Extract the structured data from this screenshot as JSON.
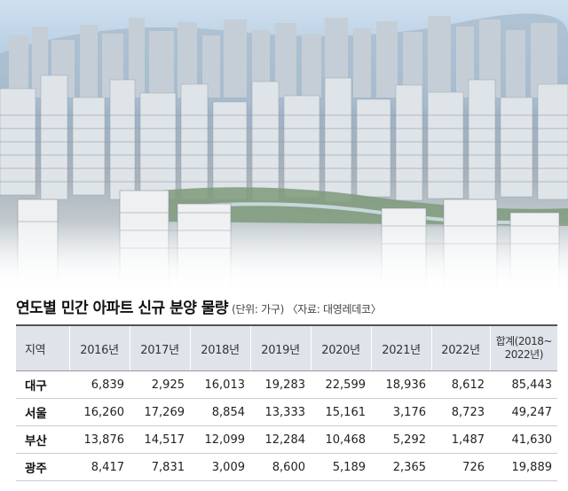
{
  "title": {
    "main": "연도별 민간 아파트 신규 분양 물량",
    "note": "(단위: 가구) 〈자료: 대영레데코〉"
  },
  "table": {
    "headers": [
      "지역",
      "2016년",
      "2017년",
      "2018년",
      "2019년",
      "2020년",
      "2021년",
      "2022년"
    ],
    "total_header_line1": "합계(2018~",
    "total_header_line2": "2022년)",
    "rows": [
      {
        "region": "대구",
        "values": [
          "6,839",
          "2,925",
          "16,013",
          "19,283",
          "22,599",
          "18,936",
          "8,612",
          "85,443"
        ]
      },
      {
        "region": "서울",
        "values": [
          "16,260",
          "17,269",
          "8,854",
          "13,333",
          "15,161",
          "3,176",
          "8,723",
          "49,247"
        ]
      },
      {
        "region": "부산",
        "values": [
          "13,876",
          "14,517",
          "12,099",
          "12,284",
          "10,468",
          "5,292",
          "1,487",
          "41,630"
        ]
      },
      {
        "region": "광주",
        "values": [
          "8,417",
          "7,831",
          "3,009",
          "8,600",
          "5,189",
          "2,365",
          "726",
          "19,889"
        ]
      }
    ]
  }
}
